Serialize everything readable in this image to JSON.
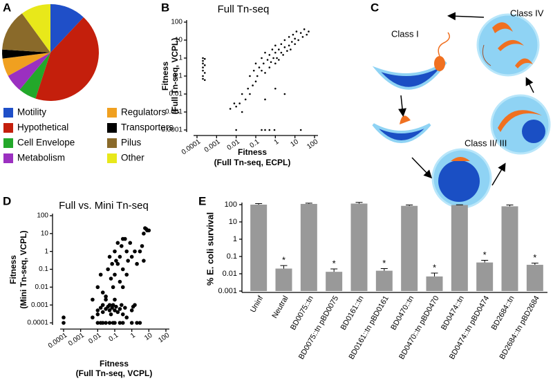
{
  "chart_data": [
    {
      "type": "pie",
      "panel": "A",
      "categories": [
        "Motility",
        "Hypothetical",
        "Cell Envelope",
        "Metabolism",
        "Regulators",
        "Transporters",
        "Pilus",
        "Other"
      ],
      "values": [
        12,
        43,
        6,
        6,
        6,
        3,
        14,
        10
      ],
      "colors": [
        "#1f4fc8",
        "#c41f0c",
        "#23a82a",
        "#9b30c0",
        "#f0a020",
        "#000000",
        "#8a6a2a",
        "#e8e81a"
      ]
    },
    {
      "type": "scatter",
      "panel": "B",
      "title": "Full Tn-seq",
      "xlabel": [
        "Fitness",
        "(Full Tn-seq, ECPL)"
      ],
      "ylabel": [
        "Fitness",
        "(Full Tn-seq, VCPL)"
      ],
      "log_x": true,
      "log_y": true,
      "color": "#000000",
      "xlim": [
        0.0001,
        100
      ],
      "ylim": [
        0.0001,
        100
      ],
      "xticks": [
        0.0001,
        0.001,
        0.01,
        0.1,
        1,
        10,
        100
      ],
      "yticks": [
        0.0001,
        0.001,
        0.01,
        0.1,
        1,
        10,
        100
      ],
      "x": [
        0.0002,
        0.0002,
        0.0002,
        0.0002,
        0.0002,
        0.0002,
        0.0002,
        0.00025,
        0.00025,
        0.00025,
        0.00025,
        0.01,
        0.2,
        0.3,
        0.5,
        0.9,
        20,
        0.01,
        0.015,
        0.02,
        0.02,
        0.03,
        0.04,
        0.05,
        0.05,
        0.07,
        0.08,
        0.1,
        0.1,
        0.12,
        0.15,
        0.2,
        0.2,
        0.25,
        0.3,
        0.3,
        0.4,
        0.5,
        0.5,
        0.6,
        0.7,
        0.8,
        1,
        1,
        1,
        1.2,
        1.5,
        1.5,
        2,
        2,
        2.5,
        3,
        3,
        4,
        5,
        5,
        6,
        7,
        8,
        10,
        10,
        12,
        15,
        20,
        25,
        30,
        40,
        50,
        0.005,
        0.008,
        3,
        1,
        0.3
      ],
      "y": [
        1,
        0.7,
        0.5,
        0.3,
        0.2,
        0.1,
        0.07,
        0.9,
        0.4,
        0.15,
        0.06,
        0.0001,
        0.0001,
        0.0001,
        0.0001,
        0.0001,
        0.0001,
        0.002,
        0.003,
        0.01,
        0.001,
        0.005,
        0.02,
        0.01,
        0.1,
        0.03,
        0.2,
        0.05,
        0.5,
        0.1,
        0.3,
        0.2,
        1,
        0.5,
        0.15,
        2,
        0.8,
        0.3,
        1.5,
        0.6,
        3,
        1,
        0.5,
        2,
        5,
        1,
        3,
        0.8,
        2,
        6,
        1.5,
        4,
        10,
        2.5,
        5,
        15,
        3,
        8,
        20,
        6,
        12,
        30,
        10,
        25,
        15,
        40,
        20,
        30,
        0.0015,
        0.003,
        0.01,
        0.02,
        0.005
      ]
    },
    {
      "type": "scatter",
      "panel": "D",
      "title": "Full vs. Mini Tn-seq",
      "xlabel": [
        "Fitness",
        "(Full Tn-seq, VCPL)"
      ],
      "ylabel": [
        "Fitness",
        "(Mini Tn-seq, VCPL)"
      ],
      "log_x": true,
      "log_y": true,
      "color": "#000000",
      "xlim": [
        0.0001,
        100
      ],
      "ylim": [
        0.0001,
        100
      ],
      "xticks": [
        0.0001,
        0.001,
        0.01,
        0.1,
        1,
        10,
        100
      ],
      "yticks": [
        0.0001,
        0.001,
        0.01,
        0.1,
        1,
        10,
        100
      ],
      "x": [
        0.0001,
        0.0001,
        0.01,
        0.015,
        0.02,
        0.03,
        0.05,
        0.08,
        0.1,
        0.2,
        0.3,
        1,
        2,
        3,
        0.005,
        0.01,
        0.01,
        0.015,
        0.02,
        0.02,
        0.03,
        0.03,
        0.04,
        0.05,
        0.05,
        0.06,
        0.07,
        0.08,
        0.1,
        0.1,
        0.12,
        0.15,
        0.2,
        0.25,
        0.3,
        0.4,
        0.5,
        1,
        1.2,
        1.5,
        0.005,
        0.01,
        0.015,
        0.02,
        0.03,
        0.04,
        0.05,
        0.06,
        0.07,
        0.08,
        0.1,
        0.1,
        0.12,
        0.15,
        0.2,
        0.2,
        0.25,
        0.3,
        0.3,
        0.4,
        0.5,
        0.5,
        0.6,
        0.8,
        1,
        1.5,
        2,
        3,
        4,
        5,
        5,
        6,
        8,
        10,
        7,
        0.3,
        0.15
      ],
      "y": [
        0.0002,
        0.0001,
        0.0001,
        0.0001,
        0.0001,
        0.0001,
        0.0001,
        0.0001,
        0.0001,
        0.0001,
        0.0001,
        0.0001,
        0.0001,
        0.0001,
        0.0002,
        0.0003,
        0.0005,
        0.0007,
        0.001,
        0.0004,
        0.0006,
        0.002,
        0.0008,
        0.0005,
        0.001,
        0.0003,
        0.0007,
        0.001,
        0.0005,
        0.002,
        0.0008,
        0.0004,
        0.0006,
        0.001,
        0.0003,
        0.0007,
        0.0002,
        0.0005,
        0.0008,
        0.001,
        0.002,
        0.01,
        0.05,
        0.005,
        0.003,
        0.1,
        0.5,
        0.03,
        0.2,
        0.01,
        1,
        0.05,
        0.3,
        3,
        0.02,
        0.5,
        2,
        5,
        0.1,
        5,
        1,
        0.05,
        0.3,
        3,
        0.5,
        1,
        0.2,
        1,
        2,
        10,
        0.3,
        20,
        15,
        15,
        18,
        0.01,
        0.2
      ]
    },
    {
      "type": "bar",
      "panel": "E",
      "ylabel": "% E. coli survival",
      "log_y": true,
      "color": "#999999",
      "categories": [
        "Uninf",
        "Neutral",
        "BD0075::tn",
        "BD0075::tn pBD0075",
        "BD0161::tn",
        "BD0161::tn pBD0161",
        "BD0470::tn",
        "BD0470::tn pBD0470",
        "BD0474::tn",
        "BD0474::tn pBD0474",
        "BD2684::tn",
        "BD2684::tn pBD2684"
      ],
      "values": [
        100,
        0.02,
        110,
        0.013,
        115,
        0.015,
        85,
        0.007,
        95,
        0.045,
        80,
        0.033
      ],
      "errors": [
        15,
        0.01,
        12,
        0.006,
        20,
        0.005,
        10,
        0.004,
        3,
        0.015,
        15,
        0.008
      ],
      "significance": [
        null,
        "*",
        null,
        "*",
        null,
        "*",
        null,
        "*",
        null,
        "*",
        null,
        "*"
      ],
      "ylim": [
        0.001,
        100
      ],
      "yticks": [
        0.001,
        0.01,
        0.1,
        1,
        10,
        100
      ]
    }
  ],
  "diagram": {
    "panel": "C",
    "labels": [
      "Class I",
      "Class II/ III",
      "Class IV"
    ]
  }
}
